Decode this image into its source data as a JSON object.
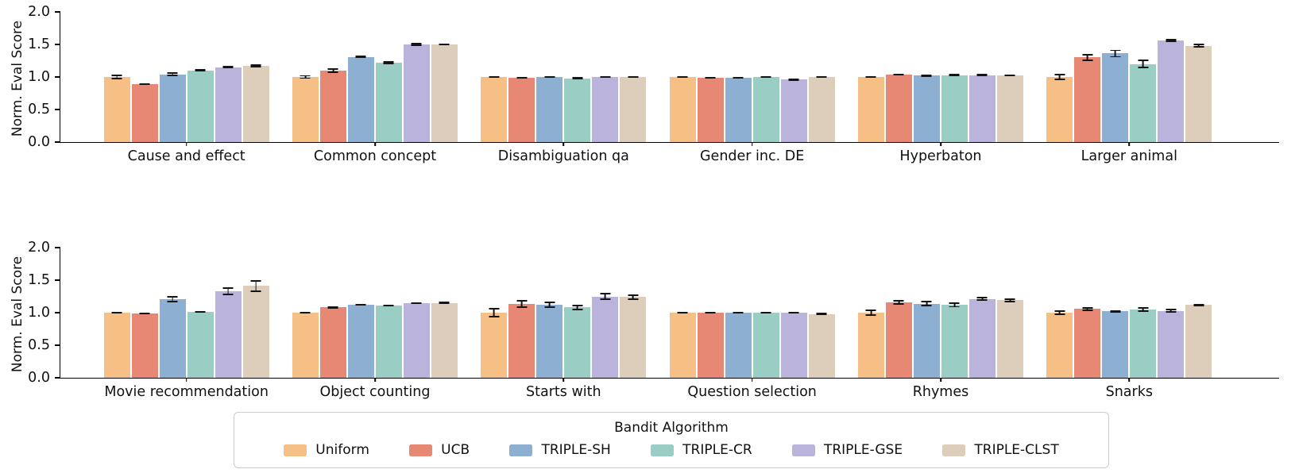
{
  "figure": {
    "background": "#ffffff",
    "axis_color": "#000000",
    "errorbar_color": "#141414"
  },
  "chart_data": {
    "type": "bar",
    "ylabel": "Norm. Eval Score",
    "ylim": [
      0,
      2.0
    ],
    "yticks": [
      0.0,
      0.5,
      1.0,
      1.5,
      2.0
    ],
    "grid": "off",
    "legend_position": "bottom",
    "legend_title": "Bandit Algorithm",
    "series": [
      "Uniform",
      "UCB",
      "TRIPLE-SH",
      "TRIPLE-CR",
      "TRIPLE-GSE",
      "TRIPLE-CLST"
    ],
    "colors": [
      "#F5BF85",
      "#E78874",
      "#8CAFD2",
      "#9ACDC3",
      "#BAB3DC",
      "#DCCEBA"
    ],
    "rows": [
      {
        "groups": [
          {
            "category": "Cause and effect",
            "values": [
              1.0,
              0.89,
              1.04,
              1.1,
              1.15,
              1.17
            ],
            "errors": [
              0.04,
              0.015,
              0.03,
              0.02,
              0.015,
              0.025
            ]
          },
          {
            "category": "Common concept",
            "values": [
              1.0,
              1.1,
              1.31,
              1.22,
              1.5,
              1.5
            ],
            "errors": [
              0.03,
              0.035,
              0.02,
              0.025,
              0.02,
              0.015
            ]
          },
          {
            "category": "Disambiguation qa",
            "values": [
              1.0,
              0.99,
              1.0,
              0.98,
              1.0,
              1.0
            ],
            "errors": [
              0.015,
              0.015,
              0.015,
              0.015,
              0.01,
              0.015
            ]
          },
          {
            "category": "Gender inc. DE",
            "values": [
              1.0,
              0.99,
              0.99,
              1.0,
              0.96,
              1.0
            ],
            "errors": [
              0.01,
              0.015,
              0.015,
              0.015,
              0.015,
              0.01
            ]
          },
          {
            "category": "Hyperbaton",
            "values": [
              1.0,
              1.04,
              1.02,
              1.03,
              1.03,
              1.02
            ],
            "errors": [
              0.015,
              0.01,
              0.015,
              0.01,
              0.01,
              0.01
            ]
          },
          {
            "category": "Larger animal",
            "values": [
              1.0,
              1.3,
              1.36,
              1.2,
              1.56,
              1.48
            ],
            "errors": [
              0.05,
              0.05,
              0.06,
              0.07,
              0.02,
              0.03
            ]
          }
        ]
      },
      {
        "groups": [
          {
            "category": "Movie recommendation",
            "values": [
              1.0,
              0.99,
              1.21,
              1.01,
              1.33,
              1.41
            ],
            "errors": [
              0.01,
              0.01,
              0.05,
              0.015,
              0.06,
              0.09
            ]
          },
          {
            "category": "Object counting",
            "values": [
              1.0,
              1.08,
              1.12,
              1.11,
              1.15,
              1.15
            ],
            "errors": [
              0.01,
              0.015,
              0.01,
              0.01,
              0.01,
              0.015
            ]
          },
          {
            "category": "Starts with",
            "values": [
              1.0,
              1.13,
              1.12,
              1.08,
              1.25,
              1.24
            ],
            "errors": [
              0.07,
              0.06,
              0.05,
              0.04,
              0.05,
              0.04
            ]
          },
          {
            "category": "Question selection",
            "values": [
              1.0,
              1.0,
              1.0,
              1.0,
              1.0,
              0.98
            ],
            "errors": [
              0.015,
              0.015,
              0.015,
              0.015,
              0.015,
              0.015
            ]
          },
          {
            "category": "Rhymes",
            "values": [
              1.0,
              1.16,
              1.14,
              1.12,
              1.21,
              1.19
            ],
            "errors": [
              0.05,
              0.04,
              0.04,
              0.04,
              0.03,
              0.03
            ]
          },
          {
            "category": "Snarks",
            "values": [
              1.0,
              1.06,
              1.02,
              1.05,
              1.03,
              1.12
            ],
            "errors": [
              0.04,
              0.03,
              0.02,
              0.04,
              0.03,
              0.02
            ]
          }
        ]
      }
    ]
  }
}
